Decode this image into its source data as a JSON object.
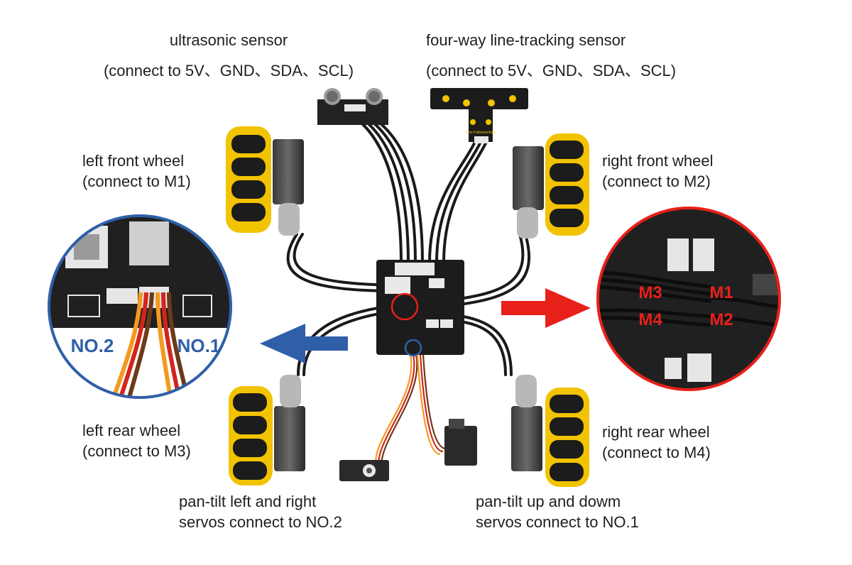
{
  "labels": {
    "ultrasonic": {
      "title": "ultrasonic sensor",
      "connect": "(connect to 5V、GND、SDA、SCL)"
    },
    "line_tracking": {
      "title": "four-way line-tracking sensor",
      "connect": "(connect to 5V、GND、SDA、SCL)"
    },
    "left_front": {
      "title": "left front wheel",
      "connect": "(connect to M1)"
    },
    "right_front": {
      "title": "right front wheel",
      "connect": "(connect to M2)"
    },
    "left_rear": {
      "title": "left rear wheel",
      "connect": "(connect to M3)"
    },
    "right_rear": {
      "title": "right rear wheel",
      "connect": "(connect to M4)"
    },
    "pan_lr": {
      "line1": "pan-tilt left and right",
      "line2": "servos connect to NO.2"
    },
    "pan_ud": {
      "line1": "pan-tilt up and dowm",
      "line2": "servos connect to NO.1"
    }
  },
  "zoom_left": {
    "port_a": "NO.2",
    "port_b": "NO.1"
  },
  "zoom_right": {
    "m1": "M1",
    "m2": "M2",
    "m3": "M3",
    "m4": "M4"
  },
  "sensor_text": {
    "module_name": "Line Follower(4ch)"
  },
  "colors": {
    "blue_accent": "#2f5fa8",
    "red_accent": "#e8201a",
    "wheel_yellow": "#f2c300",
    "board_black": "#1c1c1c",
    "servo_orange": "#f39a1e",
    "servo_red": "#d4241c"
  }
}
